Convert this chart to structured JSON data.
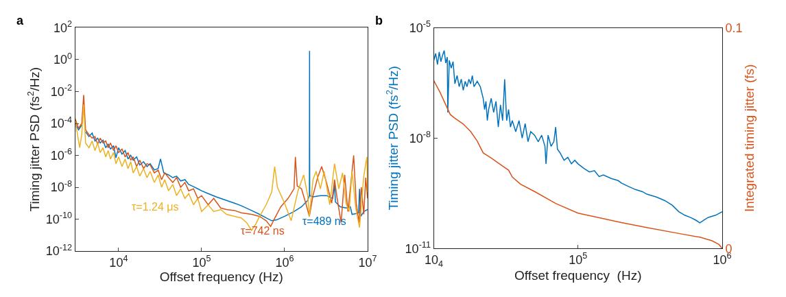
{
  "chart_data": [
    {
      "type": "line",
      "annotations": [
        "a"
      ],
      "xlabel": "Offset frequency (Hz)",
      "ylabel": "Timing jitter PSD (fs$^{2}$/Hz)",
      "log": "xy",
      "xlim": [
        3000,
        10000000
      ],
      "xticks": [
        {
          "value": 10000,
          "label": "10$^{4}$"
        },
        {
          "value": 100000,
          "label": "10$^{5}$"
        },
        {
          "value": 1000000,
          "label": "10$^{6}$"
        },
        {
          "value": 10000000,
          "label": "10$^{7}$"
        }
      ],
      "ylim": [
        1e-12,
        100
      ],
      "yticks": [
        {
          "value": 1e-12,
          "label": "10$^{-12}$"
        },
        {
          "value": 1e-10,
          "label": "10$^{-10}$"
        },
        {
          "value": 1e-08,
          "label": "10$^{-8}$"
        },
        {
          "value": 1e-06,
          "label": "10$^{-6}$"
        },
        {
          "value": 0.0001,
          "label": "10$^{-4}$"
        },
        {
          "value": 0.01,
          "label": "10$^{-2}$"
        },
        {
          "value": 1,
          "label": "10$^{0}$"
        },
        {
          "value": 100,
          "label": "10$^{2}$"
        }
      ],
      "series": [
        {
          "name": "τ=489 ns",
          "color": "#0072bd",
          "x": [
            3000,
            3300,
            3600,
            3800,
            4000,
            4400,
            4800,
            5200,
            5600,
            6000,
            6500,
            7000,
            7500,
            8000,
            8700,
            9300,
            10000,
            11000,
            12000,
            13000,
            14000,
            15000,
            16500,
            18000,
            20000,
            22000,
            24000,
            27000,
            30000,
            32000,
            35000,
            40000,
            45000,
            50000,
            56000,
            63000,
            70000,
            80000,
            90000,
            100000,
            120000,
            150000,
            200000,
            250000,
            300000,
            400000,
            500000,
            600000,
            700000,
            800000,
            1000000,
            1300000,
            1600000,
            1900000,
            1990000,
            2000000,
            2010000,
            2200000,
            2700000,
            3200000,
            3800000,
            4000000,
            4100000,
            4700000,
            5500000,
            6200000,
            6500000,
            7200000,
            7800000,
            8000000,
            8300000,
            9000000,
            10000000
          ],
          "values": [
            0.0001,
            4e-05,
            8e-05,
            null,
            3e-05,
            1.5e-05,
            2.5e-05,
            8e-06,
            1.2e-05,
            6e-06,
            9e-06,
            3e-06,
            5e-06,
            2.5e-06,
            4e-06,
            7e-07,
            3e-06,
            1.2e-06,
            2e-06,
            6e-07,
            1e-06,
            5e-07,
            8e-07,
            2.5e-07,
            4e-07,
            2e-07,
            3e-07,
            1.2e-07,
            1.5e-07,
            6e-07,
            8e-08,
            6e-08,
            4e-08,
            5e-08,
            2.5e-08,
            3e-08,
            1.5e-08,
            1.1e-08,
            8e-09,
            6e-09,
            4e-09,
            2.5e-09,
            1.5e-09,
            1e-09,
            7e-10,
            3.5e-10,
            2e-10,
            1.2e-10,
            8e-11,
            9e-11,
            1.5e-10,
            3e-10,
            6e-10,
            1.5e-09,
            3e-09,
            3.5,
            3e-09,
            2.5e-09,
            3e-09,
            3e-09,
            2e-09,
            1.5e-08,
            1.2e-09,
            6e-10,
            5e-10,
            6e-10,
            2e-10,
            2.2e-10,
            2.5e-10,
            8e-09,
            1.5e-10,
            3e-10,
            4e-10
          ]
        },
        {
          "name": "τ=742 ns",
          "color": "#d95319",
          "x": [
            3000,
            3300,
            3600,
            3800,
            4000,
            4400,
            4800,
            5200,
            5600,
            6000,
            6500,
            7000,
            7500,
            8000,
            8700,
            9300,
            10000,
            11000,
            12000,
            13000,
            14000,
            15000,
            16500,
            18000,
            20000,
            22000,
            24000,
            27000,
            30000,
            33000,
            36000,
            40000,
            45000,
            50000,
            56000,
            63000,
            70000,
            80000,
            90000,
            100000,
            120000,
            140000,
            170000,
            200000,
            250000,
            300000,
            400000,
            500000,
            600000,
            680000,
            750000,
            900000,
            1100000,
            1300000,
            1350000,
            1420000,
            1600000,
            1800000,
            1990000,
            2200000,
            2500000,
            2800000,
            3200000,
            3700000,
            4000000,
            4300000,
            4800000,
            5300000,
            5800000,
            6300000,
            6800000,
            7300000,
            7900000,
            8400000,
            9000000,
            9500000,
            10000000
          ],
          "values": [
            0.0002,
            5e-05,
            0.0001,
            0.006,
            4e-05,
            2e-05,
            1.2e-05,
            1.5e-05,
            5e-06,
            1.2e-05,
            6e-06,
            8e-06,
            3e-06,
            6e-06,
            2e-06,
            4e-06,
            1.5e-06,
            2.5e-06,
            8e-07,
            1.5e-06,
            5e-07,
            8e-07,
            2e-07,
            5e-07,
            1.5e-07,
            3e-07,
            2.5e-07,
            8e-08,
            1.2e-07,
            3e-08,
            8e-08,
            4e-08,
            2e-08,
            4e-08,
            1e-08,
            2e-08,
            6e-09,
            8e-09,
            2e-09,
            3e-09,
            8e-10,
            2e-09,
            5e-10,
            4e-10,
            3.5e-10,
            2.5e-10,
            2e-10,
            1.5e-10,
            8e-11,
            3.5e-11,
            1e-10,
            6e-10,
            2e-09,
            8e-09,
            8e-07,
            1.2e-08,
            8e-09,
            1e-09,
            1.5e-10,
            3e-09,
            4e-08,
            2e-07,
            2e-08,
            1e-09,
            3e-08,
            2e-09,
            6e-11,
            6e-08,
            3e-10,
            2e-08,
            1e-06,
            1e-09,
            6e-11,
            1e-08,
            2e-10,
            4e-08,
            2e-09
          ]
        },
        {
          "name": "τ=1.24 μs",
          "color": "#edb120",
          "x": [
            3000,
            3200,
            3400,
            3600,
            3800,
            4000,
            4400,
            4800,
            5200,
            5600,
            6000,
            6500,
            7000,
            7500,
            8000,
            8700,
            9300,
            10000,
            11000,
            12000,
            13000,
            14000,
            15000,
            16500,
            18000,
            20000,
            22000,
            24000,
            27000,
            30000,
            33000,
            36000,
            40000,
            45000,
            50000,
            56000,
            63000,
            70000,
            80000,
            90000,
            100000,
            120000,
            140000,
            170000,
            200000,
            250000,
            300000,
            350000,
            400000,
            450000,
            500000,
            600000,
            700000,
            760000,
            820000,
            1000000,
            1200000,
            1450000,
            1700000,
            1900000,
            1990000,
            2200000,
            2400000,
            2700000,
            3000000,
            3500000,
            4000000,
            4500000,
            5000000,
            5500000,
            6000000,
            6500000,
            7200000,
            8000000,
            9000000,
            9800000,
            10000000
          ],
          "values": [
            0.00015,
            2e-05,
            3e-06,
            2e-05,
            0.0015,
            6e-06,
            3e-06,
            8e-06,
            2e-06,
            6e-06,
            1.5e-06,
            3e-06,
            8e-07,
            2e-06,
            6e-07,
            1.5e-06,
            3e-07,
            8e-07,
            2e-07,
            6e-07,
            1.5e-07,
            4e-07,
            8e-08,
            2e-07,
            5e-08,
            1.5e-07,
            4e-08,
            1e-07,
            2e-08,
            6e-08,
            1e-08,
            3e-08,
            6e-09,
            1.5e-08,
            3e-09,
            8e-09,
            2e-09,
            4e-09,
            8e-10,
            2e-09,
            3e-10,
            8e-10,
            3e-10,
            4e-10,
            2e-10,
            1.5e-10,
            1.2e-10,
            6e-11,
            2e-11,
            5e-11,
            1.5e-10,
            8e-10,
            5e-09,
            2e-07,
            1e-08,
            1e-09,
            8e-11,
            6e-09,
            6e-08,
            3e-09,
            1.5e-10,
            3e-08,
            1e-07,
            8e-09,
            1e-07,
            8e-10,
            3e-07,
            8e-09,
            8e-08,
            1e-09,
            3e-10,
            1e-07,
            5e-10,
            3e-11,
            5e-08,
            8e-07,
            5e-09
          ]
        }
      ]
    },
    {
      "type": "line",
      "annotations": [
        "b"
      ],
      "xlabel": "Offset frequency  (Hz)",
      "ylabel": "Timing jitter PSD (fs$^{2}$/Hz)",
      "y2label": "Integrated timing jitter (fs)",
      "log": "xy",
      "xlim": [
        10000,
        1000000
      ],
      "xticks": [
        {
          "value": 10000,
          "label": "10$_{4}$"
        },
        {
          "value": 100000,
          "label": "10$^{5}$"
        },
        {
          "value": 1000000,
          "label": "10$^{6}$"
        }
      ],
      "ylim": [
        1e-11,
        1e-05
      ],
      "yticks": [
        {
          "value": 1e-11,
          "label": "10$^{-11}$"
        },
        {
          "value": 1e-08,
          "label": "10$^{-8}$"
        },
        {
          "value": 1e-05,
          "label": "10$^{-5}$"
        }
      ],
      "y2lim": [
        0,
        0.1
      ],
      "y2ticks": [
        0,
        0.1
      ],
      "series": [
        {
          "color": "#0072bd",
          "x": [
            10000,
            10300,
            10600,
            10900,
            11200,
            11500,
            11800,
            12100,
            12400,
            12500,
            12800,
            13200,
            13600,
            14000,
            14500,
            15000,
            15500,
            16000,
            16500,
            17000,
            17500,
            18000,
            18500,
            19000,
            20000,
            21000,
            22000,
            22500,
            23000,
            23500,
            24000,
            25000,
            26000,
            27000,
            28000,
            29000,
            30000,
            31000,
            32000,
            33000,
            34000,
            35000,
            37000,
            39000,
            41000,
            43000,
            45000,
            47000,
            50000,
            53000,
            56000,
            59000,
            60000,
            62000,
            65000,
            68000,
            70000,
            72000,
            75000,
            80000,
            85000,
            90000,
            95000,
            100000,
            110000,
            120000,
            130000,
            140000,
            150000,
            170000,
            190000,
            200000,
            220000,
            250000,
            280000,
            300000,
            350000,
            400000,
            450000,
            500000,
            550000,
            600000,
            650000,
            700000,
            750000,
            800000,
            900000,
            1000000
          ],
          "values": [
            1.3e-06,
            2e-06,
            1e-06,
            2.2e-06,
            1.2e-06,
            1.8e-06,
            2.4e-06,
            1.1e-06,
            1.6e-06,
            5e-08,
            1.3e-06,
            8e-07,
            1.2e-06,
            3e-07,
            5e-07,
            2.5e-07,
            4e-07,
            2e-07,
            3.5e-07,
            2.5e-07,
            4e-07,
            3e-07,
            5e-07,
            2.5e-07,
            3.5e-07,
            2.5e-07,
            1.2e-07,
            6e-08,
            1e-07,
            3e-08,
            6e-08,
            1.2e-07,
            5e-08,
            1e-07,
            2e-08,
            8e-08,
            3e-08,
            4e-07,
            3e-08,
            6e-08,
            2e-08,
            3e-08,
            1.5e-08,
            3e-08,
            1e-08,
            2.5e-08,
            8e-09,
            1.5e-08,
            1.2e-08,
            8e-09,
            1.2e-08,
            6e-09,
            2e-09,
            1.2e-08,
            6e-09,
            8e-09,
            2e-08,
            5e-09,
            4e-09,
            2.5e-09,
            3e-09,
            2e-09,
            2.5e-09,
            2e-09,
            1.5e-09,
            1.2e-09,
            1.3e-09,
            9e-10,
            1e-09,
            8e-10,
            7e-10,
            6e-10,
            5e-10,
            4e-10,
            3.5e-10,
            3e-10,
            2.5e-10,
            2e-10,
            1.5e-10,
            1e-10,
            8e-11,
            7e-11,
            6e-11,
            5e-11,
            6e-11,
            7e-11,
            8e-11,
            1e-10
          ]
        },
        {
          "color": "#d95319",
          "axis": "y2",
          "x": [
            10000,
            11000,
            12000,
            13000,
            14000,
            16000,
            18000,
            20000,
            22000,
            25000,
            30000,
            33000,
            35000,
            40000,
            50000,
            70000,
            100000,
            150000,
            200000,
            300000,
            500000,
            700000,
            850000,
            950000,
            1000000
          ],
          "values": [
            0.076,
            0.071,
            0.0656,
            0.0607,
            0.059,
            0.0564,
            0.053,
            0.0487,
            0.0433,
            0.041,
            0.0373,
            0.0355,
            0.0324,
            0.0291,
            0.0258,
            0.0204,
            0.016,
            0.0135,
            0.0117,
            0.0095,
            0.0068,
            0.0051,
            0.0035,
            0.0018,
            0
          ]
        }
      ]
    }
  ]
}
